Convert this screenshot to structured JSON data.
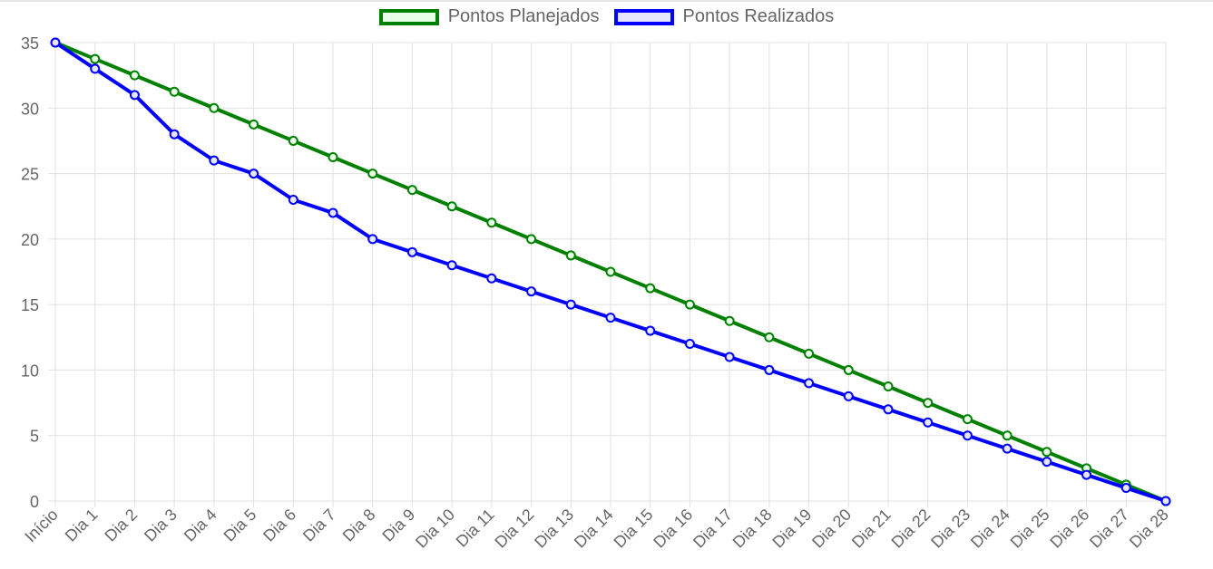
{
  "chart_data": {
    "type": "line",
    "categories": [
      "Início",
      "Dia 1",
      "Dia 2",
      "Dia 3",
      "Dia 4",
      "Dia 5",
      "Dia 6",
      "Dia 7",
      "Dia 8",
      "Dia 9",
      "Dia 10",
      "Dia 11",
      "Dia 12",
      "Dia 13",
      "Dia 14",
      "Dia 15",
      "Dia 16",
      "Dia 17",
      "Dia 18",
      "Dia 19",
      "Dia 20",
      "Dia 21",
      "Dia 22",
      "Dia 23",
      "Dia 24",
      "Dia 25",
      "Dia 26",
      "Dia 27",
      "Dia 28"
    ],
    "series": [
      {
        "name": "Pontos Planejados",
        "color": "#008000",
        "fill": "#e6ffe6",
        "values": [
          35,
          33.75,
          32.5,
          31.25,
          30,
          28.75,
          27.5,
          26.25,
          25,
          23.75,
          22.5,
          21.25,
          20,
          18.75,
          17.5,
          16.25,
          15,
          13.75,
          12.5,
          11.25,
          10,
          8.75,
          7.5,
          6.25,
          5,
          3.75,
          2.5,
          1.25,
          0
        ]
      },
      {
        "name": "Pontos Realizados",
        "color": "#0000ff",
        "fill": "#e6e6ff",
        "values": [
          35,
          33,
          31,
          28,
          26,
          25,
          23,
          22,
          20,
          19,
          18,
          17,
          16,
          15,
          14,
          13,
          12,
          11,
          10,
          9,
          8,
          7,
          6,
          5,
          4,
          3,
          2,
          1,
          0
        ]
      }
    ],
    "ylim": [
      0,
      35
    ],
    "yticks": [
      0,
      5,
      10,
      15,
      20,
      25,
      30,
      35
    ],
    "grid": true,
    "legend_position": "top-center",
    "title": "",
    "xlabel": "",
    "ylabel": ""
  }
}
